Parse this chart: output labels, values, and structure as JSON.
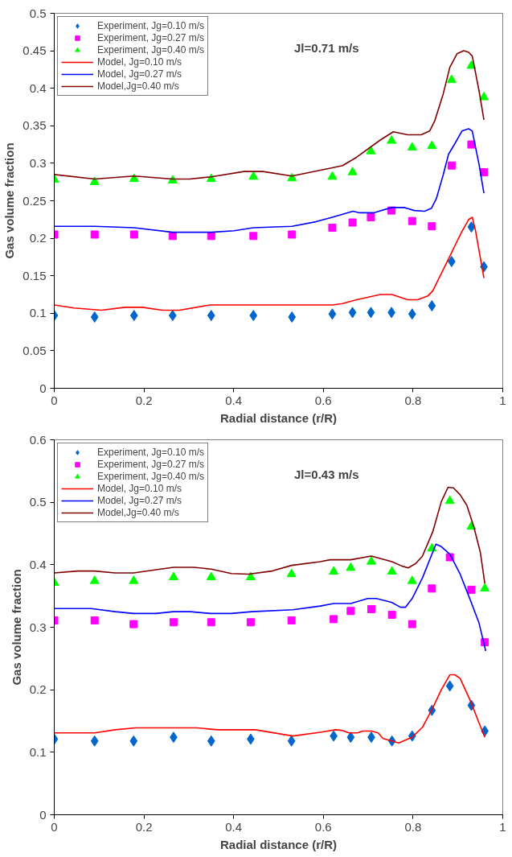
{
  "chart_data": [
    {
      "type": "scatter",
      "xlabel": "Radial distance (r/R)",
      "ylabel": "Gas volume fraction",
      "annotations": [
        "Jl=0.71 m/s"
      ],
      "xlim": [
        0,
        1
      ],
      "ylim": [
        0,
        0.5
      ],
      "xticks": [
        0,
        0.2,
        0.4,
        0.6,
        0.8,
        1
      ],
      "yticks": [
        0,
        0.05,
        0.1,
        0.15,
        0.2,
        0.25,
        0.3,
        0.35,
        0.4,
        0.45,
        0.5
      ],
      "grid": false,
      "legend": "top left",
      "line_style": "solid",
      "series": [
        {
          "name": "Experiment, Jg=0.10 m/s",
          "marker": "diamond",
          "color": "#0066cc",
          "x": [
            0,
            0.09,
            0.178,
            0.264,
            0.35,
            0.444,
            0.53,
            0.62,
            0.665,
            0.706,
            0.752,
            0.798,
            0.842,
            0.886,
            0.93,
            0.958
          ],
          "values": [
            0.097,
            0.095,
            0.097,
            0.097,
            0.097,
            0.097,
            0.095,
            0.099,
            0.101,
            0.101,
            0.101,
            0.099,
            0.11,
            0.169,
            0.215,
            0.162
          ]
        },
        {
          "name": "Experiment, Jg=0.27 m/s",
          "marker": "square",
          "color": "#ff00ff",
          "x": [
            0,
            0.09,
            0.178,
            0.264,
            0.35,
            0.444,
            0.53,
            0.62,
            0.665,
            0.706,
            0.752,
            0.798,
            0.842,
            0.886,
            0.93,
            0.958
          ],
          "values": [
            0.205,
            0.205,
            0.205,
            0.203,
            0.203,
            0.203,
            0.205,
            0.214,
            0.221,
            0.228,
            0.237,
            0.223,
            0.216,
            0.297,
            0.325,
            0.288
          ]
        },
        {
          "name": "Experiment, Jg=0.40 m/s",
          "marker": "triangle",
          "color": "#00ff00",
          "x": [
            0,
            0.09,
            0.178,
            0.264,
            0.35,
            0.444,
            0.53,
            0.62,
            0.665,
            0.706,
            0.752,
            0.798,
            0.842,
            0.886,
            0.93,
            0.958
          ],
          "values": [
            0.278,
            0.275,
            0.279,
            0.277,
            0.279,
            0.282,
            0.28,
            0.282,
            0.288,
            0.316,
            0.33,
            0.321,
            0.323,
            0.411,
            0.43,
            0.388
          ]
        },
        {
          "name": "Model, Jg=0.10 m/s",
          "type": "line",
          "marker": "none",
          "color": "#ff0000",
          "x": [
            0,
            0.044,
            0.105,
            0.158,
            0.196,
            0.241,
            0.279,
            0.347,
            0.62,
            0.643,
            0.674,
            0.727,
            0.753,
            0.788,
            0.81,
            0.833,
            0.844,
            0.863,
            0.886,
            0.894,
            0.909,
            0.924,
            0.932,
            0.939,
            0.958
          ],
          "values": [
            0.111,
            0.107,
            0.104,
            0.108,
            0.108,
            0.104,
            0.104,
            0.111,
            0.111,
            0.113,
            0.118,
            0.125,
            0.125,
            0.118,
            0.118,
            0.123,
            0.13,
            0.153,
            0.181,
            0.191,
            0.209,
            0.225,
            0.228,
            0.211,
            0.147
          ]
        },
        {
          "name": "Model, Jg=0.27 m/s",
          "type": "line",
          "marker": "none",
          "color": "#0000ff",
          "x": [
            0,
            0.09,
            0.178,
            0.264,
            0.35,
            0.401,
            0.444,
            0.53,
            0.583,
            0.62,
            0.666,
            0.681,
            0.712,
            0.752,
            0.78,
            0.803,
            0.826,
            0.841,
            0.852,
            0.867,
            0.879,
            0.894,
            0.909,
            0.924,
            0.932,
            0.947,
            0.958
          ],
          "values": [
            0.216,
            0.216,
            0.214,
            0.208,
            0.208,
            0.21,
            0.214,
            0.216,
            0.222,
            0.228,
            0.236,
            0.234,
            0.234,
            0.241,
            0.241,
            0.237,
            0.236,
            0.24,
            0.253,
            0.284,
            0.312,
            0.327,
            0.343,
            0.346,
            0.343,
            0.299,
            0.26
          ]
        },
        {
          "name": "Model,Jg=0.40 m/s",
          "type": "line",
          "marker": "none",
          "color": "#800000",
          "x": [
            0,
            0.09,
            0.178,
            0.264,
            0.302,
            0.35,
            0.423,
            0.465,
            0.53,
            0.62,
            0.643,
            0.674,
            0.727,
            0.756,
            0.788,
            0.818,
            0.837,
            0.848,
            0.867,
            0.882,
            0.898,
            0.913,
            0.924,
            0.932,
            0.947,
            0.958
          ],
          "values": [
            0.285,
            0.279,
            0.283,
            0.279,
            0.279,
            0.282,
            0.289,
            0.289,
            0.283,
            0.294,
            0.297,
            0.308,
            0.331,
            0.342,
            0.338,
            0.338,
            0.343,
            0.356,
            0.392,
            0.428,
            0.446,
            0.45,
            0.448,
            0.443,
            0.397,
            0.358
          ]
        }
      ]
    },
    {
      "type": "scatter",
      "xlabel": "Radial distance (r/R)",
      "ylabel": "Gas volume fraction",
      "annotations": [
        "Jl=0.43 m/s"
      ],
      "xlim": [
        0,
        1
      ],
      "ylim": [
        0,
        0.6
      ],
      "xticks": [
        0,
        0.2,
        0.4,
        0.6,
        0.8,
        1
      ],
      "yticks": [
        0,
        0.1,
        0.2,
        0.3,
        0.4,
        0.5,
        0.6
      ],
      "grid": false,
      "legend": "top left",
      "line_style": "solid",
      "series": [
        {
          "name": "Experiment, Jg=0.10 m/s",
          "marker": "diamond",
          "color": "#0066cc",
          "x": [
            0,
            0.09,
            0.177,
            0.266,
            0.35,
            0.438,
            0.529,
            0.623,
            0.661,
            0.707,
            0.753,
            0.798,
            0.842,
            0.882,
            0.93,
            0.96
          ],
          "values": [
            0.121,
            0.118,
            0.118,
            0.124,
            0.118,
            0.121,
            0.118,
            0.126,
            0.124,
            0.124,
            0.118,
            0.126,
            0.167,
            0.206,
            0.175,
            0.134
          ]
        },
        {
          "name": "Experiment, Jg=0.27 m/s",
          "marker": "square",
          "color": "#ff00ff",
          "x": [
            0,
            0.09,
            0.177,
            0.266,
            0.35,
            0.438,
            0.529,
            0.623,
            0.661,
            0.707,
            0.753,
            0.798,
            0.842,
            0.882,
            0.93,
            0.96
          ],
          "values": [
            0.311,
            0.311,
            0.305,
            0.308,
            0.308,
            0.308,
            0.311,
            0.313,
            0.326,
            0.329,
            0.32,
            0.305,
            0.362,
            0.412,
            0.36,
            0.276
          ]
        },
        {
          "name": "Experiment, Jg=0.40 m/s",
          "marker": "triangle",
          "color": "#00ff00",
          "x": [
            0,
            0.09,
            0.177,
            0.266,
            0.35,
            0.438,
            0.529,
            0.623,
            0.661,
            0.707,
            0.753,
            0.798,
            0.842,
            0.882,
            0.93,
            0.96
          ],
          "values": [
            0.371,
            0.374,
            0.374,
            0.38,
            0.38,
            0.38,
            0.385,
            0.389,
            0.395,
            0.405,
            0.389,
            0.374,
            0.426,
            0.502,
            0.461,
            0.362
          ]
        },
        {
          "name": "Model, Jg=0.10 m/s",
          "type": "line",
          "marker": "none",
          "color": "#ff0000",
          "x": [
            0,
            0.09,
            0.136,
            0.181,
            0.318,
            0.364,
            0.448,
            0.532,
            0.593,
            0.627,
            0.642,
            0.657,
            0.676,
            0.688,
            0.707,
            0.722,
            0.733,
            0.768,
            0.798,
            0.821,
            0.844,
            0.863,
            0.882,
            0.893,
            0.905,
            0.928,
            0.947,
            0.96
          ],
          "values": [
            0.131,
            0.131,
            0.136,
            0.139,
            0.139,
            0.136,
            0.136,
            0.126,
            0.132,
            0.136,
            0.135,
            0.131,
            0.131,
            0.134,
            0.134,
            0.131,
            0.122,
            0.115,
            0.124,
            0.14,
            0.171,
            0.2,
            0.224,
            0.224,
            0.218,
            0.182,
            0.147,
            0.124
          ]
        },
        {
          "name": "Model, Jg=0.27 m/s",
          "type": "line",
          "marker": "none",
          "color": "#0000ff",
          "x": [
            0,
            0.082,
            0.136,
            0.177,
            0.227,
            0.265,
            0.303,
            0.349,
            0.395,
            0.44,
            0.532,
            0.593,
            0.623,
            0.661,
            0.699,
            0.718,
            0.752,
            0.772,
            0.783,
            0.798,
            0.821,
            0.851,
            0.863,
            0.882,
            0.905,
            0.928,
            0.947,
            0.962
          ],
          "values": [
            0.33,
            0.33,
            0.325,
            0.322,
            0.322,
            0.325,
            0.325,
            0.322,
            0.322,
            0.325,
            0.328,
            0.334,
            0.338,
            0.338,
            0.346,
            0.346,
            0.34,
            0.332,
            0.332,
            0.346,
            0.379,
            0.433,
            0.429,
            0.417,
            0.385,
            0.343,
            0.307,
            0.262
          ]
        },
        {
          "name": "Model,Jg=0.40 m/s",
          "type": "line",
          "marker": "none",
          "color": "#800000",
          "x": [
            0,
            0.052,
            0.09,
            0.136,
            0.177,
            0.227,
            0.266,
            0.311,
            0.35,
            0.395,
            0.433,
            0.486,
            0.529,
            0.593,
            0.615,
            0.661,
            0.707,
            0.753,
            0.775,
            0.789,
            0.806,
            0.821,
            0.844,
            0.863,
            0.878,
            0.89,
            0.905,
            0.92,
            0.935,
            0.95,
            0.96
          ],
          "values": [
            0.387,
            0.39,
            0.39,
            0.387,
            0.387,
            0.392,
            0.396,
            0.396,
            0.393,
            0.386,
            0.385,
            0.39,
            0.399,
            0.405,
            0.408,
            0.408,
            0.414,
            0.405,
            0.398,
            0.395,
            0.402,
            0.414,
            0.453,
            0.501,
            0.524,
            0.523,
            0.512,
            0.495,
            0.462,
            0.42,
            0.37
          ]
        }
      ]
    }
  ]
}
